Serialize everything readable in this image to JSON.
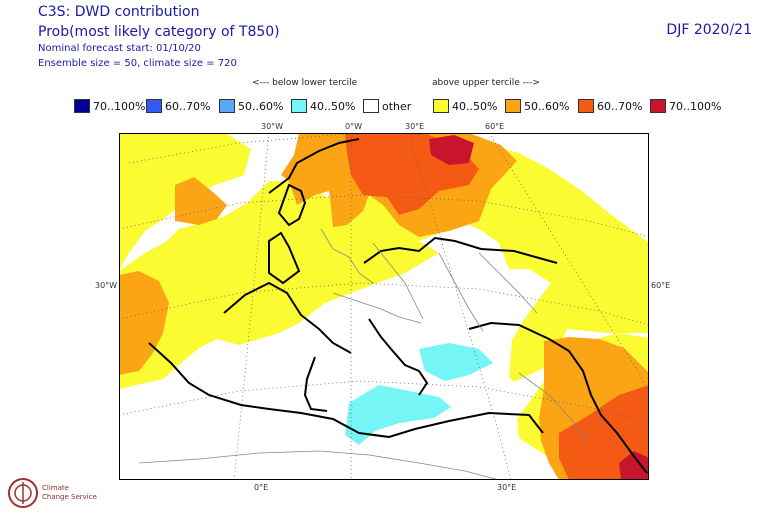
{
  "header": {
    "title": "C3S: DWD contribution",
    "subtitle": "Prob(most likely category of T850)",
    "forecast_start": "Nominal forecast start: 01/10/20",
    "ensemble": "Ensemble size = 50, climate size = 720",
    "season": "DJF 2020/21"
  },
  "tercile_labels": {
    "below": "<--- below lower tercile",
    "above": "above upper tercile --->"
  },
  "legend": [
    {
      "label": "70..100%",
      "color": "#000094"
    },
    {
      "label": "60..70%",
      "color": "#3557f5"
    },
    {
      "label": "50..60%",
      "color": "#5aa8f5"
    },
    {
      "label": "40..50%",
      "color": "#75f5f5"
    },
    {
      "label": "other",
      "color": "#ffffff"
    },
    {
      "label": "40..50%",
      "color": "#fbfb32"
    },
    {
      "label": "50..60%",
      "color": "#fba514"
    },
    {
      "label": "60..70%",
      "color": "#f55a14"
    },
    {
      "label": "70..100%",
      "color": "#c8142d"
    }
  ],
  "grid_labels": {
    "top_30w": "30°W",
    "top_0e": "0°W",
    "top_30e": "30°E",
    "top_60e": "60°E",
    "left_30w": "30°W",
    "right_60e": "60°E",
    "bottom_0e": "0°E",
    "bottom_30e": "30°E"
  },
  "logo": {
    "line1": "Climate",
    "line2": "Change Service"
  }
}
